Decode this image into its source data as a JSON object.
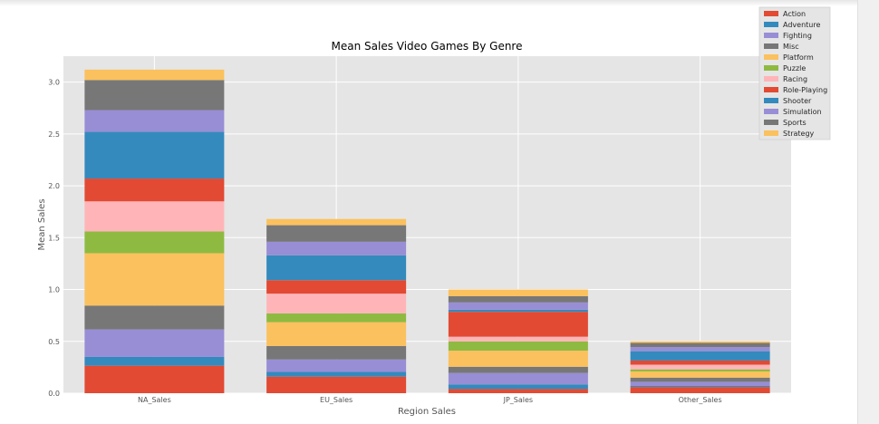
{
  "chart_data": {
    "type": "bar",
    "stacked": true,
    "title": "Mean Sales Video Games By Genre",
    "xlabel": "Region Sales",
    "ylabel": "Mean Sales",
    "ylim": [
      0,
      3.25
    ],
    "yticks": [
      "0.0",
      "0.5",
      "1.0",
      "1.5",
      "2.0",
      "2.5",
      "3.0"
    ],
    "categories": [
      "NA_Sales",
      "EU_Sales",
      "JP_Sales",
      "Other_Sales"
    ],
    "grid": true,
    "legend_position": "top-right",
    "series": [
      {
        "name": "Action",
        "color": "#E24A33",
        "values": [
          0.265,
          0.16,
          0.04,
          0.06
        ]
      },
      {
        "name": "Adventure",
        "color": "#348ABD",
        "values": [
          0.085,
          0.045,
          0.045,
          0.01
        ]
      },
      {
        "name": "Fighting",
        "color": "#988ED5",
        "values": [
          0.265,
          0.12,
          0.11,
          0.04
        ]
      },
      {
        "name": "Misc",
        "color": "#777777",
        "values": [
          0.23,
          0.13,
          0.06,
          0.04
        ]
      },
      {
        "name": "Platform",
        "color": "#FBC15E",
        "values": [
          0.505,
          0.23,
          0.155,
          0.06
        ]
      },
      {
        "name": "Puzzle",
        "color": "#8EBA42",
        "values": [
          0.21,
          0.085,
          0.09,
          0.02
        ]
      },
      {
        "name": "Racing",
        "color": "#FFB5B8",
        "values": [
          0.29,
          0.19,
          0.045,
          0.045
        ]
      },
      {
        "name": "Role-Playing",
        "color": "#E24A33",
        "values": [
          0.22,
          0.13,
          0.24,
          0.04
        ]
      },
      {
        "name": "Shooter",
        "color": "#348ABD",
        "values": [
          0.45,
          0.24,
          0.02,
          0.09
        ]
      },
      {
        "name": "Simulation",
        "color": "#988ED5",
        "values": [
          0.21,
          0.13,
          0.07,
          0.04
        ]
      },
      {
        "name": "Sports",
        "color": "#777777",
        "values": [
          0.29,
          0.16,
          0.06,
          0.04
        ]
      },
      {
        "name": "Strategy",
        "color": "#FBC15E",
        "values": [
          0.1,
          0.06,
          0.065,
          0.015
        ]
      }
    ]
  }
}
